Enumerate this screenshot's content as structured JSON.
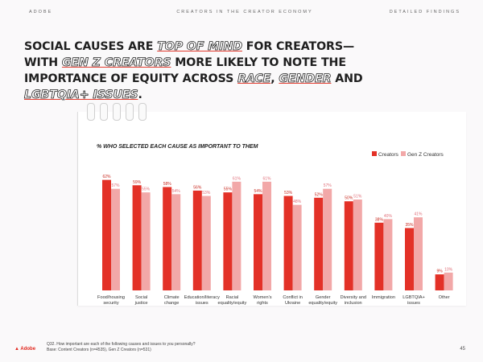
{
  "header": {
    "left": "ADOBE",
    "center": "CREATORS IN THE CREATOR ECONOMY",
    "right": "DETAILED FINDINGS"
  },
  "headline": {
    "p1": "SOCIAL CAUSES ARE ",
    "h1": "TOP OF MIND",
    "p2": " FOR CREATORS—WITH ",
    "h2": "GEN Z CREATORS",
    "p3": " MORE LIKELY TO NOTE THE IMPORTANCE OF EQUITY ACROSS ",
    "h3": "RACE",
    "p4": ", ",
    "h4": "GENDER",
    "p5": " AND ",
    "h5": "LGBTQIA+ ISSUES",
    "p6": "."
  },
  "colors": {
    "creators": "#e33127",
    "genz": "#f2a8a8",
    "creators_label": "#c82a20",
    "genz_label": "#e0707a"
  },
  "chart_data": {
    "type": "bar",
    "title": "% WHO SELECTED EACH CAUSE AS IMPORTANT TO THEM",
    "categories": [
      [
        "Food/housing",
        "security"
      ],
      [
        "Social",
        "justice"
      ],
      [
        "Climate",
        "change"
      ],
      [
        "Education/literacy",
        "issues"
      ],
      [
        "Racial",
        "equality/equity"
      ],
      [
        "Women's",
        "rights"
      ],
      [
        "Conflict in",
        "Ukraine"
      ],
      [
        "Gender",
        "equality/equity"
      ],
      [
        "Diversity and",
        "inclusion"
      ],
      [
        "Immigration"
      ],
      [
        "LGBTQIA+",
        "issues"
      ],
      [
        "Other"
      ]
    ],
    "series": [
      {
        "name": "Creators",
        "values": [
          62,
          59,
          58,
          56,
          55,
          54,
          53,
          52,
          50,
          38,
          35,
          9
        ]
      },
      {
        "name": "Gen Z Creators",
        "values": [
          57,
          55,
          54,
          53,
          61,
          61,
          48,
          57,
          51,
          40,
          41,
          10
        ]
      }
    ],
    "value_suffix": "%",
    "ylim": [
      0,
      65
    ],
    "legend": "top-right"
  },
  "footnote": {
    "line1": "Q32. How important are each of the following causes and issues to you personally?",
    "line2": "Base: Content Creators (n=4535), Gen Z Creators (n=531)"
  },
  "logo_text": "Adobe",
  "page_number": "45"
}
